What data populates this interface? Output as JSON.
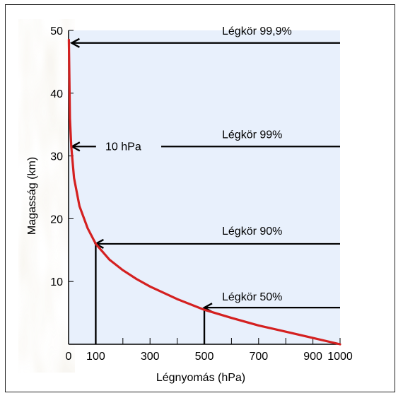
{
  "chart_data": {
    "type": "line",
    "title": "",
    "xlabel": "Légnyomás (hPa)",
    "ylabel": "Magasság (km)",
    "xlim": [
      0,
      1000
    ],
    "ylim": [
      0,
      50
    ],
    "x_ticks": [
      0,
      100,
      300,
      500,
      700,
      900,
      1000
    ],
    "x_minor_ticks": [
      200,
      400,
      600,
      800
    ],
    "y_ticks": [
      10,
      20,
      30,
      40,
      50
    ],
    "grid": false,
    "colors": {
      "curve": "#d42020",
      "plot_bg": "#e8f0fc",
      "outer_bg": "#f2efe8"
    },
    "series": [
      {
        "x": [
          1,
          5,
          10,
          20,
          40,
          70,
          100,
          150,
          200,
          250,
          300,
          400,
          500,
          600,
          700,
          800,
          900,
          1000
        ],
        "y": [
          48.5,
          36,
          31.5,
          26.5,
          22,
          18.5,
          16,
          13.5,
          11.8,
          10.4,
          9.2,
          7.2,
          5.5,
          4.2,
          3.0,
          2.0,
          1.0,
          0.0
        ]
      }
    ],
    "annotations": [
      {
        "label": "Légkör 99,9%",
        "x": 1,
        "y": 48
      },
      {
        "label": "Légkör 99%",
        "x": 10,
        "y": 31.5
      },
      {
        "label": "10 hPa",
        "x": 10,
        "y": 31.5
      },
      {
        "label": "Légkör 90%",
        "x": 100,
        "y": 16
      },
      {
        "label": "Légkör 50%",
        "x": 500,
        "y": 5.5
      }
    ]
  }
}
